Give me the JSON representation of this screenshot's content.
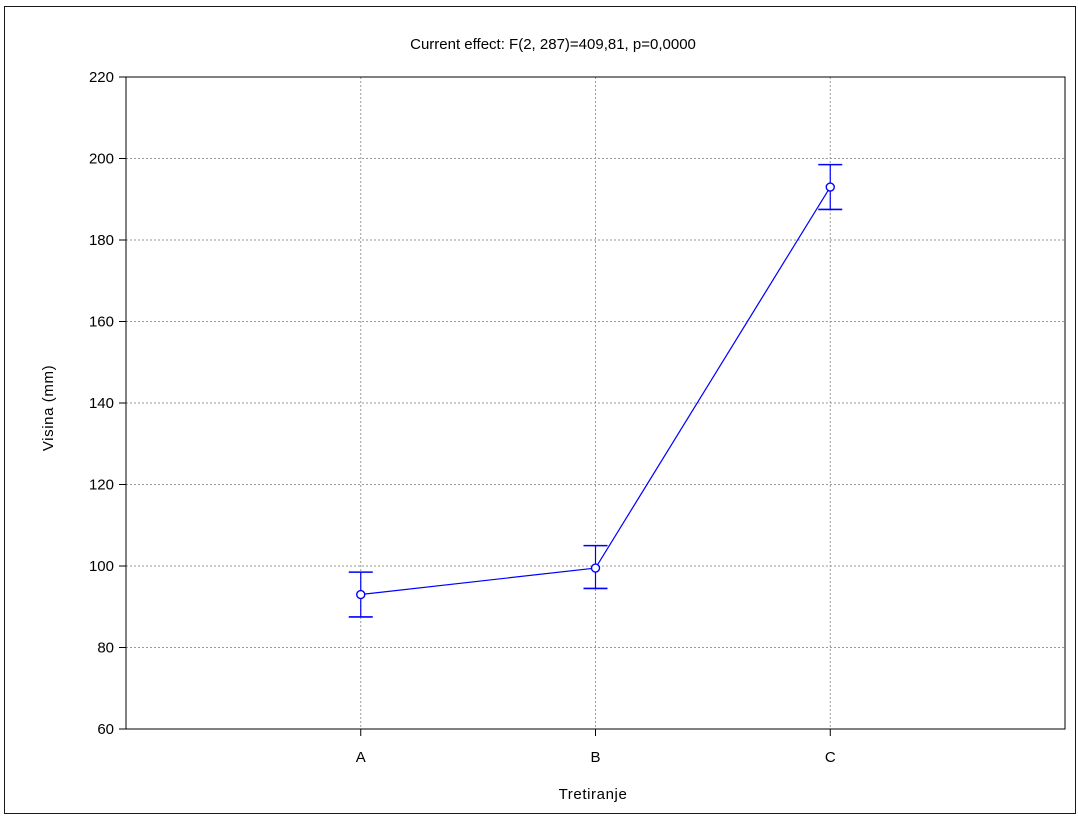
{
  "chart_data": {
    "type": "line",
    "title": "Current effect: F(2, 287)=409,81, p=0,0000",
    "xlabel": "Tretiranje",
    "ylabel": "Visina (mm)",
    "categories": [
      "A",
      "B",
      "C"
    ],
    "ylim": [
      60,
      220
    ],
    "yticks": [
      60,
      80,
      100,
      120,
      140,
      160,
      180,
      200,
      220
    ],
    "grid": true,
    "series": [
      {
        "values": [
          93,
          99.5,
          193
        ],
        "error_low": [
          87.5,
          94.5,
          187.5
        ],
        "error_high": [
          98.5,
          105,
          198.5
        ],
        "color": "#0000ff"
      }
    ]
  }
}
